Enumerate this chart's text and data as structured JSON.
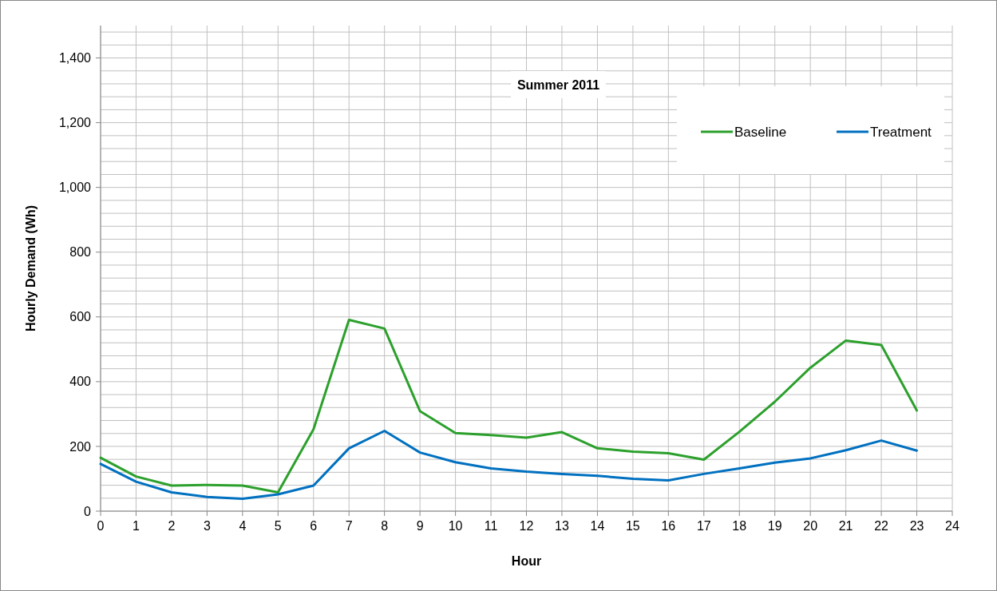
{
  "chart_data": {
    "type": "line",
    "title": "Summer 2011",
    "xlabel": "Hour",
    "ylabel": "Hourly Demand (Wh)",
    "x": [
      0,
      1,
      2,
      3,
      4,
      5,
      6,
      7,
      8,
      9,
      10,
      11,
      12,
      13,
      14,
      15,
      16,
      17,
      18,
      19,
      20,
      21,
      22,
      23
    ],
    "series": [
      {
        "name": "Baseline",
        "color": "#2ca02c",
        "values": [
          165,
          107,
          79,
          81,
          79,
          58,
          253,
          591,
          564,
          309,
          241,
          235,
          227,
          244,
          194,
          184,
          179,
          159,
          245,
          338,
          443,
          527,
          513,
          311
        ]
      },
      {
        "name": "Treatment",
        "color": "#0070c0",
        "values": [
          146,
          91,
          58,
          44,
          38,
          52,
          79,
          194,
          248,
          181,
          151,
          132,
          122,
          115,
          109,
          100,
          95,
          115,
          132,
          150,
          163,
          188,
          218,
          187
        ]
      }
    ],
    "xlim": [
      0,
      24
    ],
    "xticks": [
      0,
      1,
      2,
      3,
      4,
      5,
      6,
      7,
      8,
      9,
      10,
      11,
      12,
      13,
      14,
      15,
      16,
      17,
      18,
      19,
      20,
      21,
      22,
      23,
      24
    ],
    "ylim": [
      0,
      1500
    ],
    "yticks": [
      0,
      {
        "value": 40,
        "label": null
      },
      {
        "value": 80,
        "label": null
      },
      {
        "value": 120,
        "label": null
      },
      {
        "value": 160,
        "label": null
      },
      {
        "value": 200,
        "label": "200"
      },
      {
        "value": 240,
        "label": null
      },
      {
        "value": 280,
        "label": null
      },
      {
        "value": 320,
        "label": null
      },
      {
        "value": 360,
        "label": null
      },
      {
        "value": 400,
        "label": "400"
      },
      {
        "value": 440,
        "label": null
      },
      {
        "value": 480,
        "label": null
      },
      {
        "value": 520,
        "label": null
      },
      {
        "value": 560,
        "label": null
      },
      {
        "value": 600,
        "label": "600"
      },
      {
        "value": 640,
        "label": null
      },
      {
        "value": 680,
        "label": null
      },
      {
        "value": 720,
        "label": null
      },
      {
        "value": 760,
        "label": null
      },
      {
        "value": 800,
        "label": "800"
      },
      {
        "value": 840,
        "label": null
      },
      {
        "value": 880,
        "label": null
      },
      {
        "value": 920,
        "label": null
      },
      {
        "value": 960,
        "label": null
      },
      {
        "value": 1000,
        "label": "1,000"
      },
      {
        "value": 1040,
        "label": null
      },
      {
        "value": 1080,
        "label": null
      },
      {
        "value": 1120,
        "label": null
      },
      {
        "value": 1160,
        "label": null
      },
      {
        "value": 1200,
        "label": "1,200"
      },
      {
        "value": 1240,
        "label": null
      },
      {
        "value": 1280,
        "label": null
      },
      {
        "value": 1320,
        "label": null
      },
      {
        "value": 1360,
        "label": null
      },
      {
        "value": 1400,
        "label": "1,400"
      },
      {
        "value": 1440,
        "label": null
      },
      {
        "value": 1480,
        "label": null
      }
    ],
    "grid": true,
    "legend": "top right",
    "marker": "none",
    "line_style": "solid"
  }
}
